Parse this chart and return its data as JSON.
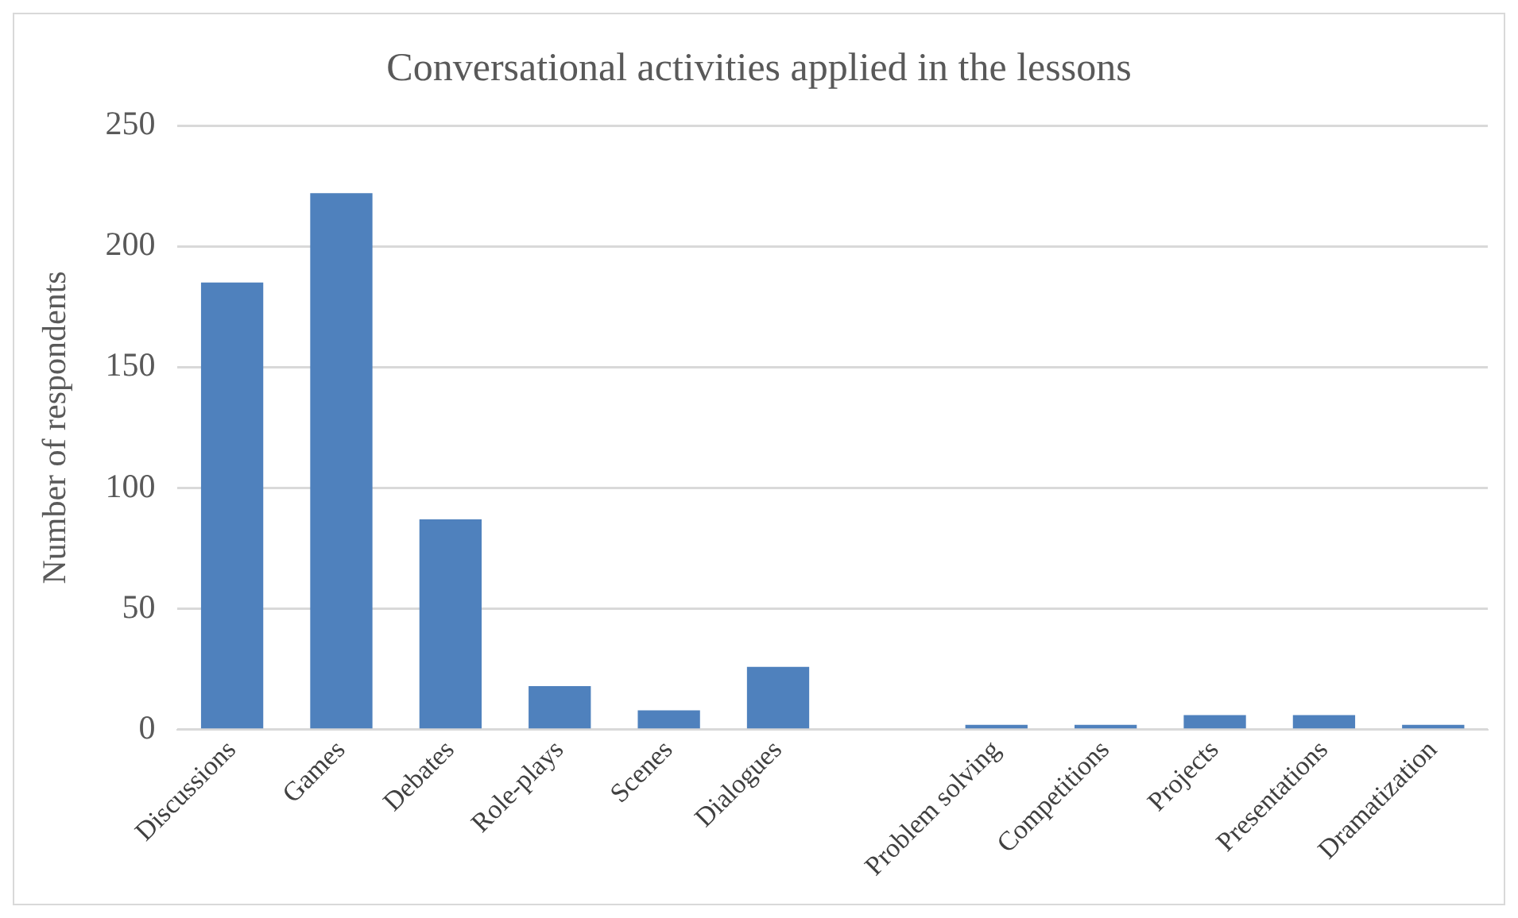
{
  "chart_data": {
    "type": "bar",
    "title": "Conversational activities applied in the lessons",
    "ylabel": "Number of respondents",
    "categories": [
      "Discussions",
      "Games",
      "Debates",
      "Role-plays",
      "Scenes",
      "Dialogues",
      null,
      "Problem solving",
      "Competitions",
      "Projects",
      "Presentations",
      "Dramatization"
    ],
    "values": [
      185,
      222,
      87,
      18,
      8,
      26,
      null,
      2,
      2,
      6,
      6,
      2
    ],
    "color": "#4f81bd",
    "ylim": [
      0,
      250
    ],
    "yticks": [
      0,
      50,
      100,
      150,
      200,
      250
    ],
    "grid": "y",
    "legend": false
  }
}
